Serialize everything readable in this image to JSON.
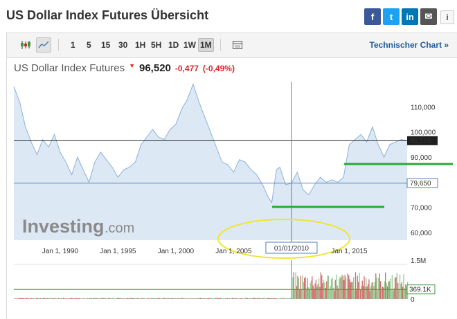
{
  "header": {
    "title": "US Dollar Index Futures Übersicht",
    "share": [
      "f",
      "t",
      "in",
      "✉"
    ],
    "info": "i"
  },
  "toolbar": {
    "periods": [
      "1",
      "5",
      "15",
      "30",
      "1H",
      "5H",
      "1D",
      "1W",
      "1M"
    ],
    "active_period": "1M",
    "tech_link": "Technischer Chart »"
  },
  "quote": {
    "name": "US Dollar Index Futures",
    "last": "96,520",
    "change": "-0,477",
    "change_pct": "(-0,49%)",
    "direction_color": "#e0262b"
  },
  "watermark": {
    "brand": "Investing",
    "suffix": ".com"
  },
  "chart_data": {
    "type": "area",
    "x_ticks": [
      "Jan 1, 1990",
      "Jan 1, 1995",
      "Jan 1, 2000",
      "Jan 1, 2005",
      "Jan 1, 2015"
    ],
    "y_ticks": [
      "110,000",
      "100,000",
      "90,000",
      "70,000",
      "60,000"
    ],
    "ylim": [
      57,
      120
    ],
    "xlim": [
      1986,
      2020
    ],
    "last_value": 96.52,
    "last_label": "96,520",
    "crosshair": {
      "x": 2010,
      "y": 79.65,
      "x_label": "01/01/2010",
      "y_label": "79,650"
    },
    "series": [
      {
        "name": "",
        "points": [
          [
            1986.0,
            118
          ],
          [
            1986.5,
            112
          ],
          [
            1987.0,
            102
          ],
          [
            1987.5,
            96
          ],
          [
            1988.0,
            91
          ],
          [
            1988.5,
            97
          ],
          [
            1989.0,
            94
          ],
          [
            1989.5,
            99
          ],
          [
            1990.0,
            92
          ],
          [
            1990.5,
            88
          ],
          [
            1991.0,
            83
          ],
          [
            1991.5,
            90
          ],
          [
            1992.0,
            85
          ],
          [
            1992.5,
            80
          ],
          [
            1993.0,
            88
          ],
          [
            1993.5,
            92
          ],
          [
            1994.0,
            89
          ],
          [
            1994.5,
            86
          ],
          [
            1995.0,
            82
          ],
          [
            1995.5,
            85
          ],
          [
            1996.0,
            86
          ],
          [
            1996.5,
            88
          ],
          [
            1997.0,
            95
          ],
          [
            1997.5,
            98
          ],
          [
            1998.0,
            101
          ],
          [
            1998.5,
            98
          ],
          [
            1999.0,
            97
          ],
          [
            1999.5,
            101
          ],
          [
            2000.0,
            103
          ],
          [
            2000.5,
            109
          ],
          [
            2001.0,
            113
          ],
          [
            2001.5,
            119
          ],
          [
            2002.0,
            112
          ],
          [
            2002.5,
            106
          ],
          [
            2003.0,
            100
          ],
          [
            2003.5,
            94
          ],
          [
            2004.0,
            88
          ],
          [
            2004.5,
            87
          ],
          [
            2005.0,
            84
          ],
          [
            2005.5,
            89
          ],
          [
            2006.0,
            88
          ],
          [
            2006.5,
            85
          ],
          [
            2007.0,
            83
          ],
          [
            2007.5,
            79
          ],
          [
            2008.0,
            74
          ],
          [
            2008.3,
            72
          ],
          [
            2008.7,
            85
          ],
          [
            2009.0,
            86
          ],
          [
            2009.5,
            79
          ],
          [
            2010.0,
            79.65
          ],
          [
            2010.5,
            84
          ],
          [
            2011.0,
            77
          ],
          [
            2011.5,
            75
          ],
          [
            2012.0,
            79
          ],
          [
            2012.5,
            82
          ],
          [
            2013.0,
            80
          ],
          [
            2013.5,
            81
          ],
          [
            2014.0,
            80
          ],
          [
            2014.5,
            82
          ],
          [
            2015.0,
            95
          ],
          [
            2015.5,
            97
          ],
          [
            2016.0,
            99
          ],
          [
            2016.5,
            96
          ],
          [
            2017.0,
            102
          ],
          [
            2017.5,
            95
          ],
          [
            2018.0,
            90
          ],
          [
            2018.5,
            95
          ],
          [
            2019.0,
            96
          ],
          [
            2019.5,
            97
          ],
          [
            2020.0,
            96.52
          ]
        ]
      }
    ],
    "volume": {
      "ticks": [
        "1.5M",
        "369.1K",
        "0"
      ],
      "last_label": "369.1K",
      "ylim": [
        0,
        1.5
      ],
      "last_value": 0.3691,
      "up_color": "#8fcb8f",
      "down_color": "#d16b6b"
    }
  }
}
